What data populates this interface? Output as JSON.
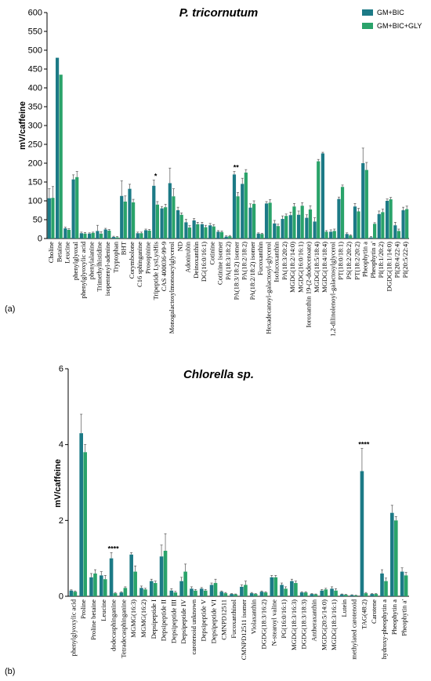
{
  "colors": {
    "gm_bic": "#1c7a86",
    "gm_bic_gly": "#2aa36a"
  },
  "legend": {
    "series_1": "GM+BIC",
    "series_2": "GM+BIC+GLY"
  },
  "panel_labels": {
    "a": "(a)",
    "b": "(b)"
  },
  "chart_data": [
    {
      "type": "bar",
      "title": "P. tricornutum",
      "ylabel": "mV/caffeine",
      "ylim": [
        0,
        600
      ],
      "yticks": [
        0,
        50,
        100,
        150,
        200,
        250,
        300,
        350,
        400,
        450,
        500,
        550,
        600
      ],
      "grid": false,
      "legend_position": "top-right",
      "categories": [
        "Choline",
        "Betaine",
        "Leucine",
        "phenylglyoxal",
        "phenylglyoxylic acid",
        "phenylalanine",
        "Trimethylhistidine",
        "isopentenyl-adenine",
        "Tryptophan",
        "BHT",
        "Corymbolone",
        "C16 sphinganine",
        "Prosopinine",
        "Tripeptide LysLysHis",
        "CAS 400036-99-9",
        "Monogalactosylmonoacylglycerol",
        "ND",
        "Adonirubin",
        "Deinoxanthin",
        "DG(16:0/16:1)",
        "Cotinine",
        "Cotinine isomer",
        "PA(18:3/18:2)",
        "PA(18:3/18:2) isomer",
        "PA(18:2/18:2)",
        "PA(18:2/18:2) isomer",
        "Fucoxanthin",
        "Hexadecanoyl-galactosyl-glycerol",
        "Isofucoxanthin",
        "PA(18:3/20:2)",
        "MGDG(18:2/14:0)",
        "MGDG(16:0/16:1)",
        "Ioroxanthin 19-(2-dodecenoate)",
        "MGDG(18:5/18:4)",
        "MGDG(18:4/18:4)",
        "1,2-dilinolenoyl-galactosylglycerol",
        "PT(18:0/18:1)",
        "PS(18:2/20:2)",
        "PT(18:2/20:2)",
        "Pheophytin a",
        "Pheophytin a'",
        "PI(18:1/20:2)",
        "DGDG(18:1/14:0)",
        "PI(20:4/22:4)",
        "PI(20:5/22:4)"
      ],
      "tick_labels": [
        "Choline",
        "Betaine",
        "Leucine",
        "phenylglyoxal",
        "phenylglyoxylic acid",
        "phenylalanine",
        "Trimethylhistidine",
        "isopentenyl-adenine",
        "Tryptophan",
        "BHT",
        "Corymbolone",
        "C16 sphinganine",
        "Prosopinine",
        "Tripeptide LysLysHis",
        "CAS 400036-99-9",
        "Monogalactosylmonoacylglycerol",
        "ND",
        "Adonirubin",
        "Deinoxanthin",
        "DG(16:0/16:1)",
        "Cotinine",
        "Cotinine isomer",
        "PA(18:3/18:2)",
        "PA(18:3/18:2) isomer",
        "PA(18:2/18:2)",
        "PA(18:2/18:2) isomer",
        "Fucoxanthin",
        "Hexadecanoyl-galactosyl-glycerol",
        "Isofucoxanthin",
        "PA(18:3/20:2)",
        "MGDG(18:2/14:0)",
        "MGDG(16:0/16:1)",
        "Ioroxanthin 19-(2-dodecenoate)",
        "MGDG(18:5/18:4)",
        "MGDG(18:4/18:4)",
        "1,2-dilinolenoyl-galactosylglycerol",
        "PT(18:0/18:1)",
        "PS(18:2/20:2)",
        "PT(18:2/20:2)",
        "Pheophytin a",
        "Pheophytin a'",
        "PI(18:1/20:2)",
        "DGDG(18:1/14:0)",
        "PI(20:4/22:4)",
        "PI(20:5/22:4)"
      ],
      "series": [
        {
          "name": "GM+BIC",
          "values": [
            107,
            480,
            27,
            157,
            14,
            13,
            20,
            24,
            4,
            113,
            132,
            14,
            22,
            140,
            80,
            147,
            75,
            43,
            48,
            38,
            35,
            18,
            5,
            170,
            145,
            82,
            13,
            93,
            40,
            52,
            62,
            63,
            55,
            45,
            226,
            18,
            105,
            12,
            85,
            200,
            3,
            65,
            100,
            35,
            75
          ],
          "errors": [
            25,
            0,
            3,
            12,
            3,
            2,
            15,
            3,
            2,
            40,
            12,
            3,
            3,
            15,
            5,
            40,
            8,
            8,
            5,
            5,
            5,
            3,
            2,
            8,
            15,
            10,
            2,
            5,
            8,
            8,
            8,
            10,
            8,
            10,
            3,
            5,
            5,
            3,
            8,
            40,
            2,
            8,
            5,
            8,
            8
          ]
        },
        {
          "name": "GM+BIC+GLY",
          "values": [
            108,
            435,
            23,
            163,
            13,
            15,
            13,
            21,
            3,
            98,
            96,
            14,
            21,
            90,
            83,
            112,
            63,
            29,
            38,
            30,
            32,
            17,
            6,
            112,
            175,
            92,
            12,
            95,
            33,
            60,
            85,
            87,
            77,
            205,
            18,
            20,
            137,
            8,
            72,
            182,
            39,
            70,
            104,
            20,
            78
          ],
          "errors": [
            30,
            0,
            3,
            15,
            3,
            2,
            5,
            3,
            2,
            15,
            8,
            3,
            3,
            8,
            8,
            20,
            5,
            5,
            5,
            5,
            5,
            3,
            2,
            10,
            8,
            8,
            2,
            8,
            5,
            5,
            8,
            8,
            10,
            5,
            3,
            5,
            5,
            2,
            8,
            20,
            3,
            8,
            5,
            5,
            8
          ]
        }
      ],
      "annotations": [
        {
          "category": "Tripeptide LysLysHis",
          "text": "*"
        },
        {
          "category": "PA(18:3/18:2) isomer",
          "text": "**"
        }
      ]
    },
    {
      "type": "bar",
      "title": "Chlorella sp.",
      "ylabel": "mV/caffeine",
      "ylim": [
        0,
        6
      ],
      "yticks": [
        0,
        2,
        4,
        6
      ],
      "grid": false,
      "categories": [
        "phenylglyoxylic acid",
        "Proline",
        "Proline betaine",
        "Leucine",
        "dodecasphinganine",
        "Tetradecasphinganine",
        "MGMG(16:3)",
        "MGMG(16:2)",
        "Depsipeptide I",
        "Depsipeptide II",
        "Depsipeptide III",
        "Depsipeptide IV",
        "carotenoid unknown",
        "Depsipeptide V",
        "Depsipeptide VI",
        "CMNPD12511",
        "Fucoxanthinol",
        "CMNPD12511 isomer",
        "Violaxanthin",
        "DGDG(18:3/16:2)",
        "N-stearoyl valine",
        "PG(16:0/16:1)",
        "MGDG(18:3/16:3)",
        "DGDG(18:3/18:3)",
        "Antheraxanthin",
        "MGDG(20:5/14:0)",
        "MGDG(18:3/16:1)",
        "Lutein",
        "methylated carotenoid",
        "TAG(48:2)",
        "Carotene",
        "hydroxy-pheophytin a",
        "Pheophytin a",
        "Pheophytin a'"
      ],
      "tick_labels": [
        "phenylglyoxylic acid",
        "Proline",
        "Proline betaine",
        "Leucine",
        "dodecasphinganine",
        "Tetradecasphinganine",
        "MGMG(16:3)",
        "MGMG(16:2)",
        "Depsipeptide I",
        "Depsipeptide II",
        "Depsipeptide III",
        "Depsipeptide IV",
        "carotenoid unknown",
        "Depsipeptide V",
        "Depsipeptide VI",
        "CMNPD12511",
        "Fucoxanthinol",
        "CMNPD12511 isomer",
        "Violaxanthin",
        "DGDG(18:3/16:2)",
        "N-stearoyl valine",
        "PG(16:0/16:1)",
        "MGDG(18:3/16:3)",
        "DGDG(18:3/18:3)",
        "Antheraxanthin",
        "MGDG(20:5/14:0)",
        "MGDG(18:3/16:1)",
        "Lutein",
        "methylated carotenoid",
        "TAG(48:2)",
        "Carotene",
        "hydroxy-pheophytin a",
        "Pheophytin a",
        "Pheophytin a'"
      ],
      "series": [
        {
          "name": "GM+BIC",
          "values": [
            0.15,
            4.3,
            0.5,
            0.55,
            1.0,
            0.1,
            1.1,
            0.22,
            0.4,
            1.05,
            0.15,
            0.4,
            0.2,
            0.2,
            0.3,
            0.12,
            0.06,
            0.25,
            0.08,
            0.12,
            0.5,
            0.3,
            0.4,
            0.1,
            0.06,
            0.15,
            0.2,
            0.05,
            0.03,
            3.3,
            0.06,
            0.6,
            2.2,
            0.65
          ],
          "errors": [
            0.02,
            0.5,
            0.1,
            0.1,
            0.15,
            0.02,
            0.05,
            0.05,
            0.05,
            0.3,
            0.05,
            0.1,
            0.05,
            0.03,
            0.05,
            0.02,
            0.01,
            0.05,
            0.02,
            0.02,
            0.05,
            0.05,
            0.05,
            0.02,
            0.01,
            0.03,
            0.05,
            0.01,
            0.01,
            0.6,
            0.01,
            0.1,
            0.2,
            0.1
          ]
        },
        {
          "name": "GM+BIC+GLY",
          "values": [
            0.12,
            3.8,
            0.6,
            0.45,
            0.08,
            0.22,
            0.65,
            0.18,
            0.35,
            1.2,
            0.1,
            0.65,
            0.15,
            0.15,
            0.35,
            0.08,
            0.05,
            0.3,
            0.06,
            0.1,
            0.5,
            0.2,
            0.35,
            0.1,
            0.05,
            0.18,
            0.15,
            0.04,
            0.02,
            0.08,
            0.06,
            0.4,
            2.0,
            0.55
          ],
          "errors": [
            0.02,
            0.2,
            0.1,
            0.1,
            0.02,
            0.03,
            0.15,
            0.03,
            0.05,
            0.45,
            0.03,
            0.2,
            0.03,
            0.03,
            0.1,
            0.02,
            0.01,
            0.1,
            0.01,
            0.02,
            0.05,
            0.05,
            0.05,
            0.02,
            0.01,
            0.03,
            0.05,
            0.01,
            0.01,
            0.02,
            0.01,
            0.08,
            0.1,
            0.08
          ]
        }
      ],
      "annotations": [
        {
          "category": "dodecasphinganine",
          "text": "****"
        },
        {
          "category": "TAG(48:2)",
          "text": "****"
        }
      ]
    }
  ]
}
